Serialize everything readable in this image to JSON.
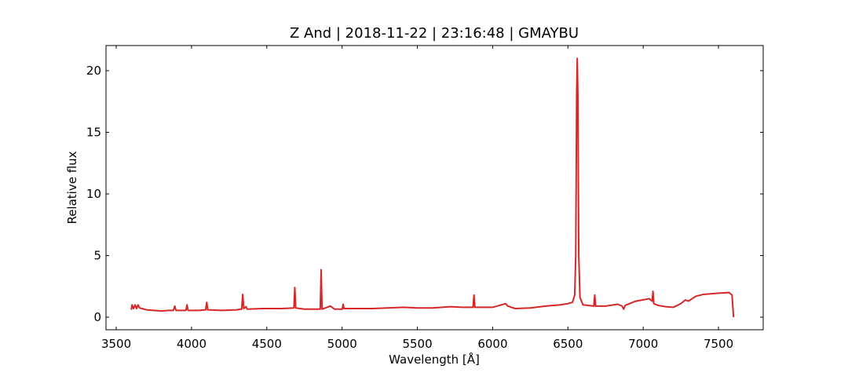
{
  "chart_data": {
    "type": "line",
    "title": "Z And | 2018-11-22 | 23:16:48 | GMAYBU",
    "x_label": "Wavelength [Å]",
    "y_label": "Relative flux",
    "xlim": [
      3432,
      7797
    ],
    "ylim": [
      -1.02,
      22.04
    ],
    "xticks": [
      3500,
      4000,
      4500,
      5000,
      5500,
      6000,
      6500,
      7000,
      7500
    ],
    "yticks": [
      0,
      5,
      10,
      15,
      20
    ],
    "grid": false,
    "series": [
      {
        "color": "#d62728",
        "x": [
          3600,
          3605,
          3615,
          3625,
          3635,
          3645,
          3655,
          3670,
          3700,
          3750,
          3800,
          3850,
          3880,
          3889,
          3897,
          3940,
          3963,
          3970,
          3977,
          4050,
          4094,
          4101,
          4108,
          4200,
          4300,
          4333,
          4340,
          4347,
          4362,
          4370,
          4470,
          4600,
          4680,
          4686,
          4692,
          4750,
          4855,
          4861,
          4867,
          4922,
          4950,
          5001,
          5007,
          5013,
          5100,
          5200,
          5300,
          5410,
          5500,
          5600,
          5720,
          5800,
          5870,
          5876,
          5882,
          6000,
          6087,
          6100,
          6150,
          6250,
          6350,
          6450,
          6500,
          6530,
          6545,
          6552,
          6558,
          6562,
          6566,
          6572,
          6580,
          6600,
          6672,
          6678,
          6684,
          6750,
          6830,
          6860,
          6870,
          6880,
          6950,
          7040,
          7060,
          7065,
          7070,
          7100,
          7150,
          7200,
          7250,
          7280,
          7300,
          7350,
          7400,
          7500,
          7570,
          7590,
          7600
        ],
        "values": [
          0.6,
          1.0,
          0.7,
          1.0,
          0.7,
          1.0,
          0.75,
          0.7,
          0.6,
          0.55,
          0.5,
          0.55,
          0.55,
          0.9,
          0.55,
          0.55,
          0.55,
          1.0,
          0.55,
          0.55,
          0.6,
          1.2,
          0.6,
          0.55,
          0.6,
          0.65,
          1.85,
          0.7,
          0.85,
          0.65,
          0.7,
          0.7,
          0.75,
          2.4,
          0.75,
          0.65,
          0.65,
          3.85,
          0.65,
          0.9,
          0.65,
          0.65,
          1.05,
          0.7,
          0.7,
          0.7,
          0.75,
          0.8,
          0.75,
          0.75,
          0.85,
          0.8,
          0.8,
          1.8,
          0.8,
          0.8,
          1.1,
          0.9,
          0.7,
          0.75,
          0.9,
          1.0,
          1.1,
          1.2,
          1.8,
          5,
          18,
          21,
          18,
          5,
          1.6,
          1.0,
          0.9,
          1.8,
          0.9,
          0.9,
          1.05,
          0.9,
          0.65,
          0.95,
          1.3,
          1.5,
          1.3,
          2.1,
          1.1,
          0.95,
          0.85,
          0.8,
          1.1,
          1.4,
          1.3,
          1.7,
          1.85,
          1.95,
          2.0,
          1.8,
          0.0
        ]
      }
    ]
  }
}
